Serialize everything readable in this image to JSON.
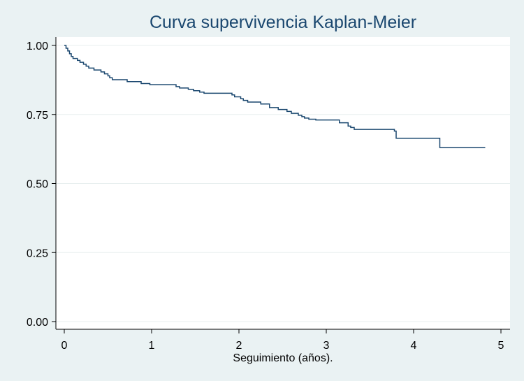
{
  "chart_data": {
    "type": "line",
    "title": "Curva supervivencia Kaplan-Meier",
    "xlabel": "Seguimiento (años).",
    "ylabel": "",
    "xlim": [
      0,
      5
    ],
    "ylim": [
      0,
      1
    ],
    "x_ticks": [
      0,
      1,
      2,
      3,
      4,
      5
    ],
    "x_tick_labels": [
      "0",
      "1",
      "2",
      "3",
      "4",
      "5"
    ],
    "y_ticks": [
      0,
      0.25,
      0.5,
      0.75,
      1.0
    ],
    "y_tick_labels": [
      "0.00",
      "0.25",
      "0.50",
      "0.75",
      "1.00"
    ],
    "grid": "horizontal",
    "step": true,
    "series": [
      {
        "color": "#1a476f",
        "x": [
          0,
          0.02,
          0.04,
          0.06,
          0.08,
          0.1,
          0.15,
          0.18,
          0.22,
          0.25,
          0.28,
          0.3,
          0.34,
          0.42,
          0.46,
          0.5,
          0.52,
          0.55,
          0.72,
          0.88,
          0.98,
          1.28,
          1.32,
          1.42,
          1.48,
          1.55,
          1.6,
          1.92,
          1.95,
          2.02,
          2.05,
          2.1,
          2.25,
          2.35,
          2.45,
          2.55,
          2.6,
          2.68,
          2.72,
          2.75,
          2.8,
          2.88,
          3.15,
          3.25,
          3.28,
          3.32,
          3.78,
          3.8,
          4.3,
          4.82
        ],
        "y": [
          1.0,
          0.99,
          0.98,
          0.97,
          0.96,
          0.953,
          0.946,
          0.939,
          0.932,
          0.925,
          0.918,
          0.918,
          0.911,
          0.904,
          0.897,
          0.89,
          0.883,
          0.876,
          0.869,
          0.862,
          0.858,
          0.851,
          0.846,
          0.841,
          0.836,
          0.831,
          0.827,
          0.821,
          0.814,
          0.807,
          0.801,
          0.795,
          0.788,
          0.775,
          0.768,
          0.761,
          0.754,
          0.747,
          0.742,
          0.737,
          0.733,
          0.73,
          0.72,
          0.708,
          0.703,
          0.696,
          0.69,
          0.664,
          0.63,
          0.63
        ]
      }
    ]
  }
}
